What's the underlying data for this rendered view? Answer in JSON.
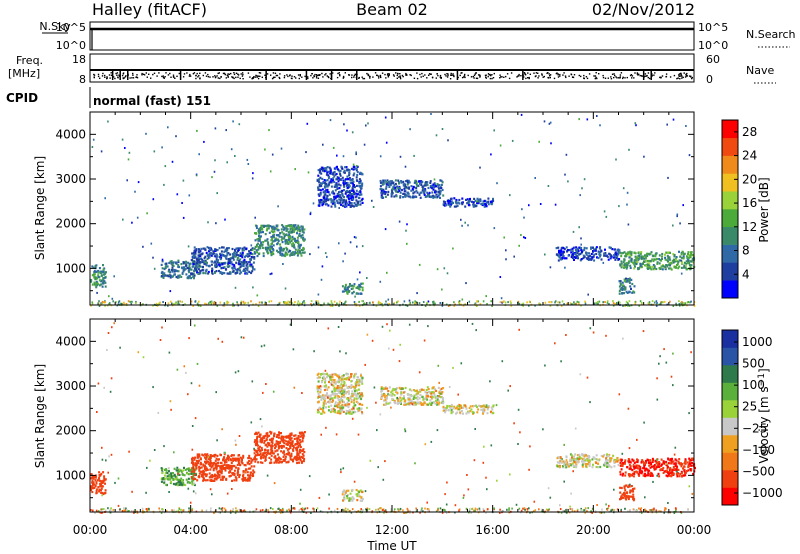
{
  "header": {
    "station": "Halley (fitACF)",
    "beam": "Beam 02",
    "date": "02/Nov/2012"
  },
  "strip": {
    "nsky_label": "N.Sky",
    "nsky_hi": "10^5",
    "nsky_lo": "10^0",
    "nsearch_hi": "10^5",
    "nsearch_lo": "10^0",
    "nsearch_label": "N.Search",
    "freq_label": "Freq.",
    "freq_unit": "[MHz]",
    "freq_hi": "18",
    "freq_lo": "8",
    "nave_hi": "60",
    "nave_lo": "0",
    "nave_label": "Nave",
    "cpid_label": "CPID",
    "cpid_value": "normal (fast) 151"
  },
  "colors": {
    "power": [
      "#0000ff",
      "#1f3fa0",
      "#2f6aa6",
      "#3a8a6a",
      "#4caa3a",
      "#9ad23a",
      "#f0c020",
      "#f08a1a",
      "#f04a10",
      "#ff0000"
    ],
    "velocity": [
      "#1a2fa0",
      "#2a55a6",
      "#2f7a4a",
      "#5ab03a",
      "#9ad23a",
      "#c8c8c8",
      "#f0a020",
      "#f07818",
      "#f04010",
      "#ff0000"
    ]
  },
  "chart_data": [
    {
      "type": "heatmap",
      "panel": "power",
      "xlabel": "Time UT",
      "ylabel": "Slant Range [km]",
      "xlim_hours": [
        0,
        24
      ],
      "ylim_km": [
        180,
        4500
      ],
      "x_tick_labels": [
        "00:00",
        "04:00",
        "08:00",
        "12:00",
        "16:00",
        "20:00",
        "00:00"
      ],
      "y_ticks": [
        1000,
        2000,
        3000,
        4000
      ],
      "colorbar_label": "Power [dB]",
      "colorbar_ticks": [
        4,
        8,
        12,
        16,
        20,
        24,
        28
      ],
      "colorbar_range": [
        0,
        30
      ],
      "scatter_regions": [
        {
          "time_start_h": 0.0,
          "time_end_h": 0.6,
          "range_start_km": 600,
          "range_end_km": 1100,
          "value": 10
        },
        {
          "time_start_h": 2.8,
          "time_end_h": 4.2,
          "range_start_km": 800,
          "range_end_km": 1200,
          "value": 8
        },
        {
          "time_start_h": 4.0,
          "time_end_h": 6.5,
          "range_start_km": 900,
          "range_end_km": 1500,
          "value": 6
        },
        {
          "time_start_h": 6.5,
          "time_end_h": 8.5,
          "range_start_km": 1300,
          "range_end_km": 2000,
          "value": 10
        },
        {
          "time_start_h": 9.0,
          "time_end_h": 10.8,
          "range_start_km": 2400,
          "range_end_km": 3300,
          "value": 5
        },
        {
          "time_start_h": 10.0,
          "time_end_h": 10.8,
          "range_start_km": 450,
          "range_end_km": 700,
          "value": 10
        },
        {
          "time_start_h": 11.5,
          "time_end_h": 14.0,
          "range_start_km": 2600,
          "range_end_km": 3000,
          "value": 6
        },
        {
          "time_start_h": 14.0,
          "time_end_h": 16.0,
          "range_start_km": 2400,
          "range_end_km": 2600,
          "value": 5
        },
        {
          "time_start_h": 18.5,
          "time_end_h": 21.0,
          "range_start_km": 1200,
          "range_end_km": 1500,
          "value": 5
        },
        {
          "time_start_h": 21.0,
          "time_end_h": 24.0,
          "range_start_km": 1000,
          "range_end_km": 1400,
          "value": 12
        },
        {
          "time_start_h": 21.0,
          "time_end_h": 21.6,
          "range_start_km": 450,
          "range_end_km": 800,
          "value": 9
        }
      ]
    },
    {
      "type": "heatmap",
      "panel": "velocity",
      "xlabel": "Time UT",
      "ylabel": "Slant Range [km]",
      "xlim_hours": [
        0,
        24
      ],
      "ylim_km": [
        180,
        4500
      ],
      "x_tick_labels": [
        "00:00",
        "04:00",
        "08:00",
        "12:00",
        "16:00",
        "20:00",
        "00:00"
      ],
      "y_ticks": [
        1000,
        2000,
        3000,
        4000
      ],
      "colorbar_label": "Velocity [m s-1]",
      "colorbar_ticks": [
        "1000",
        "500",
        "100",
        "25",
        "−25",
        "−100",
        "−500",
        "−1000"
      ],
      "scatter_regions": [
        {
          "time_start_h": 0.0,
          "time_end_h": 0.6,
          "range_start_km": 600,
          "range_end_km": 1100,
          "value": -200
        },
        {
          "time_start_h": 2.8,
          "time_end_h": 4.2,
          "range_start_km": 800,
          "range_end_km": 1200,
          "value": 80
        },
        {
          "time_start_h": 4.0,
          "time_end_h": 6.5,
          "range_start_km": 900,
          "range_end_km": 1500,
          "value": -300
        },
        {
          "time_start_h": 6.5,
          "time_end_h": 8.5,
          "range_start_km": 1300,
          "range_end_km": 2000,
          "value": -400
        },
        {
          "time_start_h": 9.0,
          "time_end_h": 10.8,
          "range_start_km": 2400,
          "range_end_km": 3300,
          "value": 0
        },
        {
          "time_start_h": 10.0,
          "time_end_h": 10.8,
          "range_start_km": 450,
          "range_end_km": 700,
          "value": 0
        },
        {
          "time_start_h": 11.5,
          "time_end_h": 14.0,
          "range_start_km": 2600,
          "range_end_km": 3000,
          "value": 0
        },
        {
          "time_start_h": 14.0,
          "time_end_h": 16.0,
          "range_start_km": 2400,
          "range_end_km": 2600,
          "value": 0
        },
        {
          "time_start_h": 18.5,
          "time_end_h": 21.0,
          "range_start_km": 1200,
          "range_end_km": 1500,
          "value": 0
        },
        {
          "time_start_h": 21.0,
          "time_end_h": 24.0,
          "range_start_km": 1000,
          "range_end_km": 1400,
          "value": -500
        },
        {
          "time_start_h": 21.0,
          "time_end_h": 21.6,
          "range_start_km": 450,
          "range_end_km": 800,
          "value": -400
        }
      ]
    }
  ]
}
